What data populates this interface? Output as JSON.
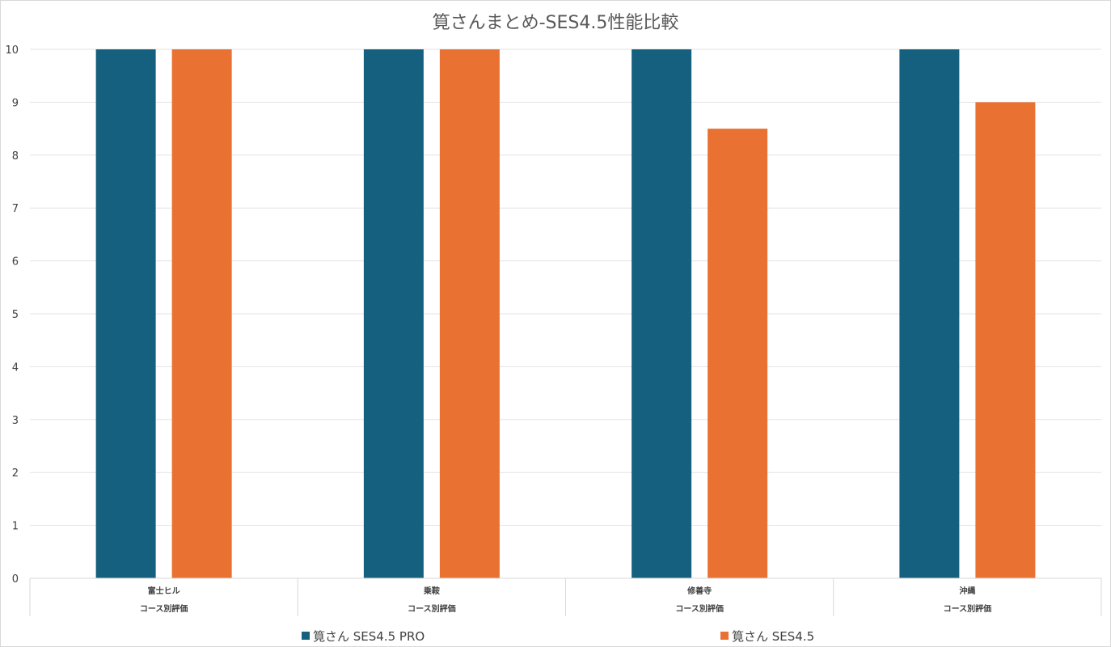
{
  "chart_data": {
    "type": "bar",
    "title": "筧さんまとめ-SES4.5性能比較",
    "categories": [
      "富士ヒル",
      "乗鞍",
      "修善寺",
      "沖縄"
    ],
    "category_group": "コース別評価",
    "ylim": [
      0,
      10
    ],
    "yticks": [
      "0",
      "1",
      "2",
      "3",
      "4",
      "5",
      "6",
      "7",
      "8",
      "9",
      "10"
    ],
    "grid": true,
    "legend_position": "bottom",
    "series": [
      {
        "name": "筧さん SES4.5 PRO",
        "color": "#16607f",
        "values": [
          10,
          10,
          10,
          10
        ]
      },
      {
        "name": "筧さん SES4.5",
        "color": "#e97132",
        "values": [
          10,
          10,
          8.5,
          9
        ]
      }
    ]
  }
}
